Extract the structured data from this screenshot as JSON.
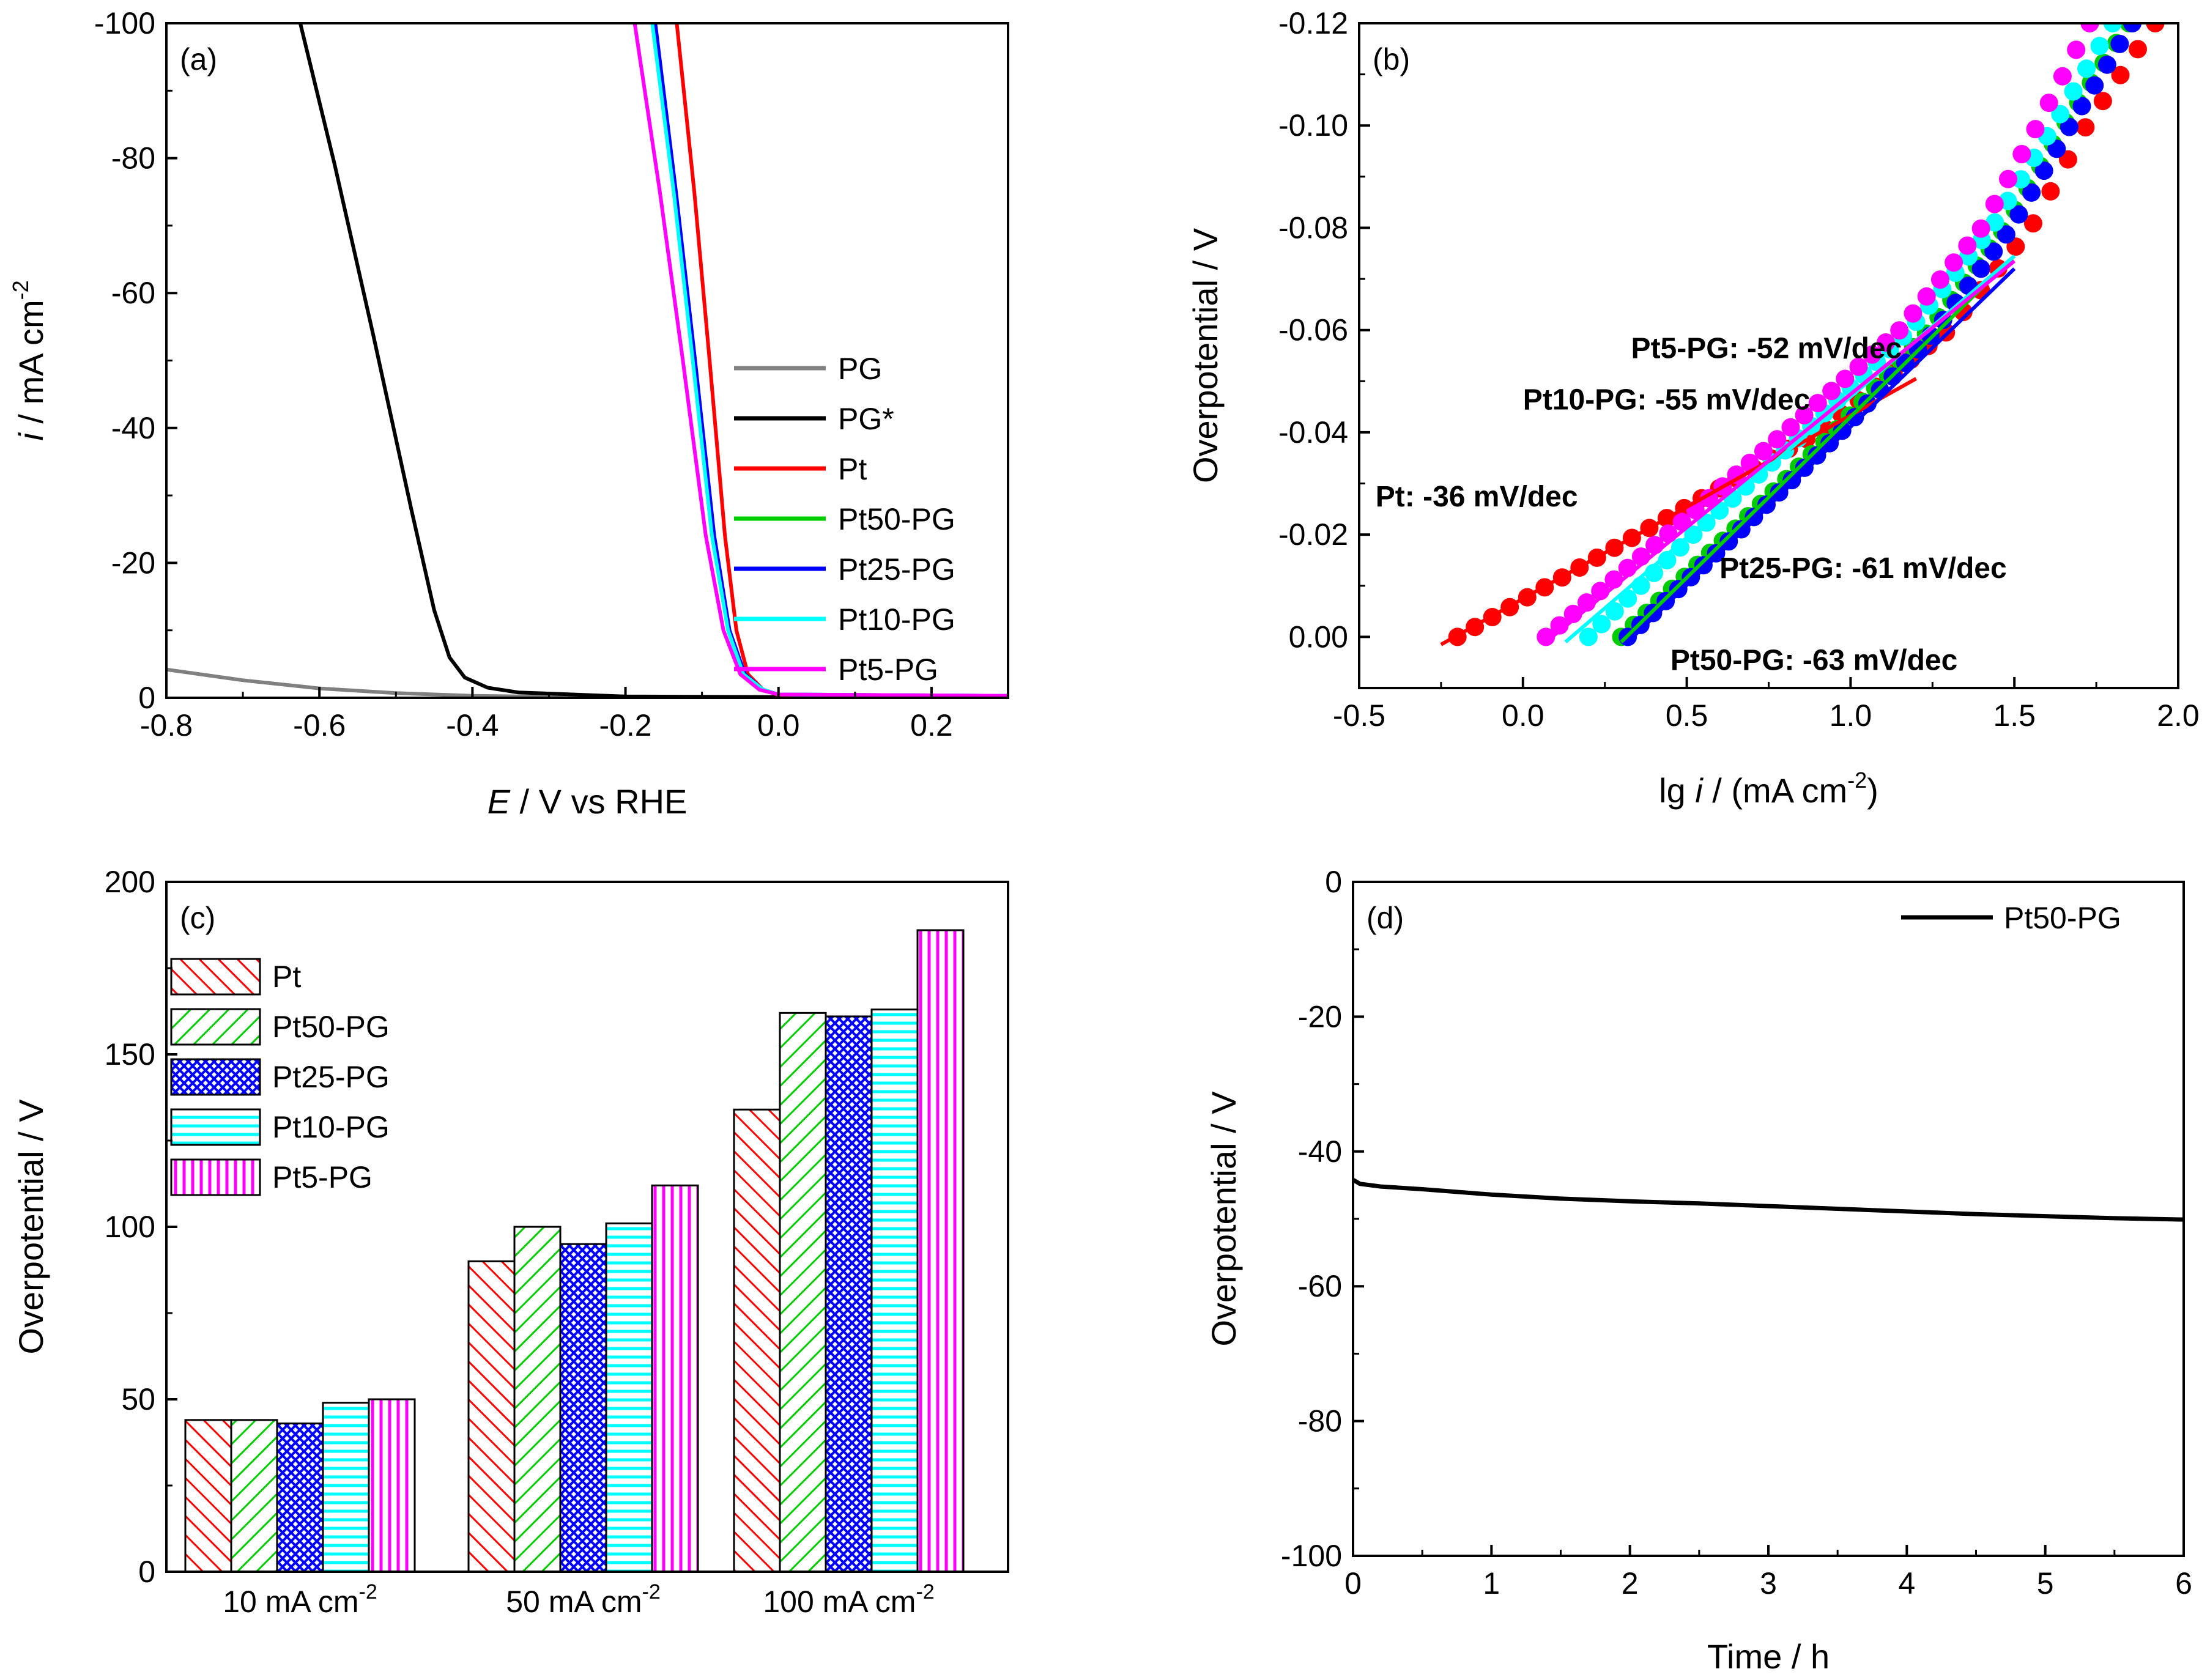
{
  "figure": {
    "panels": [
      {
        "id": "a",
        "label": "(a)",
        "chart_data": {
          "type": "line",
          "xlabel_italic": "E",
          "xlabel_rest": " / V vs RHE",
          "ylabel_italic": "i",
          "ylabel_rest": " / mA cm",
          "ylabel_sup": "-2",
          "xlim": [
            -0.8,
            0.3
          ],
          "ylim": [
            -100,
            0
          ],
          "xticks": [
            -0.8,
            -0.6,
            -0.4,
            -0.2,
            0.0,
            0.2
          ],
          "xtick_labels": [
            "-0.8",
            "-0.6",
            "-0.4",
            "-0.2",
            "0.0",
            "0.2"
          ],
          "yticks": [
            0,
            -20,
            -40,
            -60,
            -80,
            -100
          ],
          "ytick_labels": [
            "0",
            "-20",
            "-40",
            "-60",
            "-80",
            "-100"
          ],
          "legend_position": "bottom-right",
          "series": [
            {
              "name": "PG",
              "color": "#808080",
              "points": [
                [
                  -0.8,
                  -4.2
                ],
                [
                  -0.7,
                  -2.6
                ],
                [
                  -0.6,
                  -1.4
                ],
                [
                  -0.5,
                  -0.7
                ],
                [
                  -0.4,
                  -0.3
                ],
                [
                  -0.3,
                  -0.15
                ],
                [
                  -0.2,
                  -0.08
                ],
                [
                  0.0,
                  -0.03
                ],
                [
                  0.3,
                  0.0
                ]
              ]
            },
            {
              "name": "PG*",
              "color": "#000000",
              "points": [
                [
                  -0.625,
                  -100
                ],
                [
                  -0.58,
                  -79
                ],
                [
                  -0.53,
                  -54
                ],
                [
                  -0.48,
                  -28
                ],
                [
                  -0.45,
                  -13
                ],
                [
                  -0.43,
                  -6
                ],
                [
                  -0.41,
                  -3
                ],
                [
                  -0.38,
                  -1.5
                ],
                [
                  -0.34,
                  -0.8
                ],
                [
                  -0.2,
                  -0.2
                ],
                [
                  0.3,
                  0.0
                ]
              ]
            },
            {
              "name": "Pt",
              "color": "#ff0000",
              "points": [
                [
                  -0.133,
                  -100
                ],
                [
                  -0.11,
                  -75
                ],
                [
                  -0.09,
                  -50
                ],
                [
                  -0.07,
                  -24
                ],
                [
                  -0.055,
                  -10
                ],
                [
                  -0.04,
                  -3.5
                ],
                [
                  -0.02,
                  -1.2
                ],
                [
                  0.0,
                  -0.4
                ],
                [
                  0.3,
                  -0.2
                ]
              ]
            },
            {
              "name": "Pt50-PG",
              "color": "#00cc00",
              "points": [
                [
                  -0.162,
                  -100
                ],
                [
                  -0.135,
                  -75
                ],
                [
                  -0.11,
                  -50
                ],
                [
                  -0.085,
                  -24
                ],
                [
                  -0.065,
                  -10
                ],
                [
                  -0.045,
                  -3.5
                ],
                [
                  -0.02,
                  -1.2
                ],
                [
                  0.0,
                  -0.5
                ],
                [
                  0.3,
                  -0.3
                ]
              ]
            },
            {
              "name": "Pt25-PG",
              "color": "#0000ff",
              "points": [
                [
                  -0.161,
                  -100
                ],
                [
                  -0.134,
                  -75
                ],
                [
                  -0.109,
                  -50
                ],
                [
                  -0.084,
                  -24
                ],
                [
                  -0.064,
                  -10
                ],
                [
                  -0.044,
                  -3.5
                ],
                [
                  -0.02,
                  -1.2
                ],
                [
                  0.0,
                  -0.5
                ],
                [
                  0.3,
                  -0.3
                ]
              ]
            },
            {
              "name": "Pt10-PG",
              "color": "#00ffff",
              "points": [
                [
                  -0.165,
                  -100
                ],
                [
                  -0.137,
                  -75
                ],
                [
                  -0.112,
                  -50
                ],
                [
                  -0.087,
                  -24
                ],
                [
                  -0.066,
                  -10
                ],
                [
                  -0.046,
                  -3.5
                ],
                [
                  -0.02,
                  -1.2
                ],
                [
                  0.0,
                  -0.5
                ],
                [
                  0.3,
                  -0.3
                ]
              ]
            },
            {
              "name": "Pt5-PG",
              "color": "#ff00ff",
              "points": [
                [
                  -0.188,
                  -100
                ],
                [
                  -0.155,
                  -75
                ],
                [
                  -0.125,
                  -50
                ],
                [
                  -0.095,
                  -24
                ],
                [
                  -0.072,
                  -10
                ],
                [
                  -0.05,
                  -3.5
                ],
                [
                  -0.025,
                  -1.2
                ],
                [
                  0.0,
                  -0.5
                ],
                [
                  0.3,
                  -0.3
                ]
              ]
            }
          ]
        }
      },
      {
        "id": "b",
        "label": "(b)",
        "chart_data": {
          "type": "scatter",
          "xlabel_pre": "lg ",
          "xlabel_italic": "i",
          "xlabel_rest": " / (mA cm",
          "xlabel_sup": "-2",
          "xlabel_end": ")",
          "ylabel": "Overpotential / V",
          "xlim": [
            -0.5,
            2.0
          ],
          "ylim": [
            0.01,
            -0.12
          ],
          "xticks": [
            -0.5,
            0.0,
            0.5,
            1.0,
            1.5,
            2.0
          ],
          "xtick_labels": [
            "-0.5",
            "0.0",
            "0.5",
            "1.0",
            "1.5",
            "2.0"
          ],
          "yticks": [
            0.0,
            -0.02,
            -0.04,
            -0.06,
            -0.08,
            -0.1,
            -0.12
          ],
          "ytick_labels": [
            "0.00",
            "-0.02",
            "-0.04",
            "-0.06",
            "-0.08",
            "-0.10",
            "-0.12"
          ],
          "series": [
            {
              "name": "Pt",
              "color": "#ff0000",
              "x_start": -0.2,
              "x_end": 1.93,
              "slope_curve": [
                [
                  -0.2,
                  0.0
                ],
                [
                  0.35,
                  -0.02
                ],
                [
                  0.9,
                  -0.04
                ],
                [
                  1.3,
                  -0.06
                ],
                [
                  1.55,
                  -0.08
                ],
                [
                  1.72,
                  -0.1
                ],
                [
                  1.93,
                  -0.12
                ]
              ],
              "fit": {
                "x": [
                  -0.25,
                  1.2
                ],
                "y": [
                  0.0015,
                  -0.0505
                ]
              }
            },
            {
              "name": "Pt50-PG",
              "color": "#00cc00",
              "x_start": 0.3,
              "x_end": 1.85,
              "slope_curve": [
                [
                  0.3,
                  0.0
                ],
                [
                  0.63,
                  -0.02
                ],
                [
                  0.95,
                  -0.04
                ],
                [
                  1.24,
                  -0.06
                ],
                [
                  1.47,
                  -0.08
                ],
                [
                  1.65,
                  -0.1
                ],
                [
                  1.85,
                  -0.12
                ]
              ],
              "fit": {
                "x": [
                  0.3,
                  1.5
                ],
                "y": [
                  0.001,
                  -0.0745
                ]
              }
            },
            {
              "name": "Pt25-PG",
              "color": "#0000ff",
              "x_start": 0.32,
              "x_end": 1.86,
              "slope_curve": [
                [
                  0.32,
                  0.0
                ],
                [
                  0.65,
                  -0.02
                ],
                [
                  0.97,
                  -0.04
                ],
                [
                  1.26,
                  -0.06
                ],
                [
                  1.49,
                  -0.08
                ],
                [
                  1.67,
                  -0.1
                ],
                [
                  1.86,
                  -0.12
                ]
              ],
              "fit": {
                "x": [
                  0.32,
                  1.5
                ],
                "y": [
                  0.001,
                  -0.072
                ]
              }
            },
            {
              "name": "Pt10-PG",
              "color": "#00ffff",
              "x_start": 0.2,
              "x_end": 1.8,
              "slope_curve": [
                [
                  0.2,
                  0.0
                ],
                [
                  0.52,
                  -0.02
                ],
                [
                  0.86,
                  -0.04
                ],
                [
                  1.18,
                  -0.06
                ],
                [
                  1.43,
                  -0.08
                ],
                [
                  1.62,
                  -0.1
                ],
                [
                  1.8,
                  -0.12
                ]
              ],
              "fit": {
                "x": [
                  0.13,
                  1.5
                ],
                "y": [
                  0.001,
                  -0.0745
                ]
              }
            },
            {
              "name": "Pt5-PG",
              "color": "#ff00ff",
              "x_start": 0.07,
              "x_end": 1.73,
              "slope_curve": [
                [
                  0.07,
                  0.0
                ],
                [
                  0.44,
                  -0.02
                ],
                [
                  0.8,
                  -0.04
                ],
                [
                  1.15,
                  -0.06
                ],
                [
                  1.4,
                  -0.08
                ],
                [
                  1.57,
                  -0.1
                ],
                [
                  1.73,
                  -0.12
                ]
              ],
              "fit": {
                "x": [
                  0.07,
                  1.5
                ],
                "y": [
                  0.001,
                  -0.0735
                ]
              }
            }
          ],
          "annotations": [
            {
              "text": "Pt5-PG: -52 mV/dec",
              "color": "#ff00ff",
              "x": 0.33,
              "y": -0.0545
            },
            {
              "text": "Pt10-PG: -55 mV/dec",
              "color": "#00ffff",
              "x": 0.0,
              "y": -0.0445
            },
            {
              "text": "Pt: -36 mV/dec",
              "color": "#ff0000",
              "x": -0.45,
              "y": -0.0255
            },
            {
              "text": "Pt25-PG: -61 mV/dec",
              "color": "#0000ff",
              "x": 0.6,
              "y": -0.0115
            },
            {
              "text": "Pt50-PG: -63 mV/dec",
              "color": "#00cc00",
              "x": 0.45,
              "y": 0.0065
            }
          ]
        }
      },
      {
        "id": "c",
        "label": "(c)",
        "chart_data": {
          "type": "bar",
          "ylabel": "Overpotential / V",
          "ylim": [
            0,
            200
          ],
          "yticks": [
            0,
            50,
            100,
            150,
            200
          ],
          "ytick_labels": [
            "0",
            "50",
            "100",
            "150",
            "200"
          ],
          "categories": [
            {
              "main": "10 mA cm",
              "sup": "-2"
            },
            {
              "main": "50 mA cm",
              "sup": "-2"
            },
            {
              "main": "100 mA cm",
              "sup": "-2"
            }
          ],
          "series": [
            {
              "name": "Pt",
              "color": "#ff0000",
              "pattern": "diag-back",
              "values": [
                44,
                90,
                134
              ]
            },
            {
              "name": "Pt50-PG",
              "color": "#00cc00",
              "pattern": "diag-fwd",
              "values": [
                44,
                100,
                162
              ]
            },
            {
              "name": "Pt25-PG",
              "color": "#0000ff",
              "pattern": "crosshatch",
              "values": [
                43,
                95,
                161
              ]
            },
            {
              "name": "Pt10-PG",
              "color": "#00ffff",
              "pattern": "horizontal",
              "values": [
                49,
                101,
                163
              ]
            },
            {
              "name": "Pt5-PG",
              "color": "#ff00ff",
              "pattern": "vertical",
              "values": [
                50,
                112,
                186
              ]
            }
          ],
          "legend_position": "top-left"
        }
      },
      {
        "id": "d",
        "label": "(d)",
        "chart_data": {
          "type": "line",
          "xlabel": "Time / h",
          "ylabel": "Overpotential / V",
          "xlim": [
            0,
            6
          ],
          "ylim": [
            -100,
            0
          ],
          "xticks": [
            0,
            1,
            2,
            3,
            4,
            5,
            6
          ],
          "xtick_labels": [
            "0",
            "1",
            "2",
            "3",
            "4",
            "5",
            "6"
          ],
          "yticks": [
            0,
            -20,
            -40,
            -60,
            -80,
            -100
          ],
          "ytick_labels": [
            "0",
            "-20",
            "-40",
            "-60",
            "-80",
            "-100"
          ],
          "legend_position": "top-right",
          "series": [
            {
              "name": "Pt50-PG",
              "color": "#000000",
              "points": [
                [
                  0,
                  -44.2
                ],
                [
                  0.05,
                  -44.8
                ],
                [
                  0.2,
                  -45.2
                ],
                [
                  0.5,
                  -45.6
                ],
                [
                  1,
                  -46.4
                ],
                [
                  1.5,
                  -47.0
                ],
                [
                  2,
                  -47.4
                ],
                [
                  2.5,
                  -47.7
                ],
                [
                  3,
                  -48.1
                ],
                [
                  3.5,
                  -48.5
                ],
                [
                  4,
                  -48.9
                ],
                [
                  4.5,
                  -49.3
                ],
                [
                  5,
                  -49.6
                ],
                [
                  5.5,
                  -49.9
                ],
                [
                  6,
                  -50.1
                ]
              ]
            }
          ]
        }
      }
    ]
  }
}
